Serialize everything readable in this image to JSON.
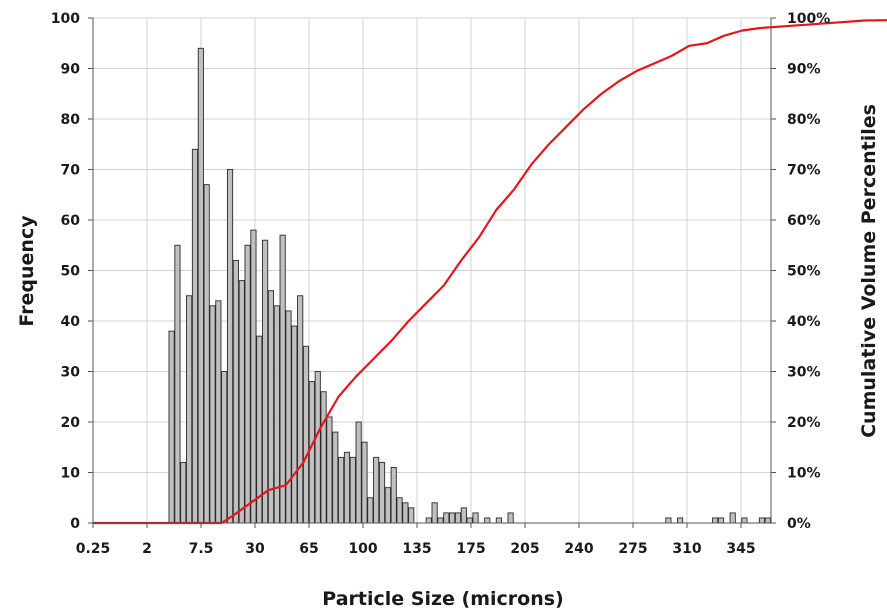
{
  "chart_data": {
    "type": "bar",
    "xlabel": "Particle Size (microns)",
    "ylabel": "Frequency",
    "ylabel_right": "Cumulative Volume Percentiles",
    "x_tick_labels": [
      "0.25",
      "2",
      "7.5",
      "30",
      "65",
      "100",
      "135",
      "175",
      "205",
      "240",
      "275",
      "310",
      "345"
    ],
    "y_left_ticks": [
      0,
      10,
      20,
      30,
      40,
      50,
      60,
      70,
      80,
      90,
      100
    ],
    "y_left_tick_labels": [
      "0",
      "10",
      "20",
      "30",
      "40",
      "50",
      "60",
      "70",
      "80",
      "90",
      "100"
    ],
    "y_right_tick_labels": [
      "0%",
      "10%",
      "20%",
      "30%",
      "40%",
      "50%",
      "60%",
      "70%",
      "80%",
      "90%",
      "100%"
    ],
    "ylim": [
      0,
      100
    ],
    "ylim_right": [
      0,
      100
    ],
    "grid": true,
    "bin_count": 116,
    "bin_width_microns": 3,
    "bar_bin_start": 13,
    "series": [
      {
        "kind": "bar",
        "color": "#c0c0c0",
        "values": [
          38,
          55,
          12,
          45,
          74,
          94,
          67,
          43,
          44,
          30,
          70,
          52,
          48,
          55,
          58,
          37,
          56,
          46,
          43,
          57,
          42,
          39,
          45,
          35,
          28,
          30,
          26,
          21,
          18,
          13,
          14,
          13,
          20,
          16,
          5,
          13,
          12,
          7,
          11,
          5,
          4,
          3,
          0,
          0,
          1,
          4,
          1,
          2,
          2,
          2,
          3,
          1,
          2,
          0,
          1,
          0,
          1,
          0,
          2,
          0,
          0,
          0,
          0,
          0,
          0,
          0,
          0,
          0,
          0,
          0,
          0,
          0,
          0,
          0,
          0,
          0,
          0,
          0,
          0,
          0,
          0,
          0,
          0,
          0,
          0,
          1,
          0,
          1,
          0,
          0,
          0,
          0,
          0,
          1,
          1,
          0,
          2,
          0,
          1,
          0,
          0,
          1,
          1
        ]
      },
      {
        "kind": "line",
        "axis": "right",
        "color": "#e8141c",
        "points": [
          [
            0,
            0
          ],
          [
            18,
            0
          ],
          [
            22,
            0
          ],
          [
            24,
            1.5
          ],
          [
            27,
            4
          ],
          [
            30,
            6.5
          ],
          [
            33,
            7.5
          ],
          [
            36,
            12
          ],
          [
            39,
            19
          ],
          [
            42,
            25
          ],
          [
            45,
            29
          ],
          [
            48,
            32.5
          ],
          [
            51,
            36
          ],
          [
            54,
            40
          ],
          [
            57,
            43.5
          ],
          [
            60,
            47
          ],
          [
            63,
            52
          ],
          [
            66,
            56.5
          ],
          [
            69,
            62
          ],
          [
            72,
            66
          ],
          [
            75,
            71
          ],
          [
            78,
            75
          ],
          [
            81,
            78.5
          ],
          [
            84,
            82
          ],
          [
            87,
            85
          ],
          [
            90,
            87.5
          ],
          [
            93,
            89.5
          ],
          [
            96,
            91
          ],
          [
            99,
            92.5
          ],
          [
            102,
            94.5
          ],
          [
            105,
            95
          ],
          [
            108,
            96.5
          ],
          [
            111,
            97.5
          ],
          [
            114,
            98
          ],
          [
            120,
            98.5
          ],
          [
            126,
            99
          ],
          [
            132,
            99.5
          ],
          [
            150,
            99.8
          ],
          [
            180,
            100
          ],
          [
            230,
            100
          ]
        ]
      }
    ]
  }
}
